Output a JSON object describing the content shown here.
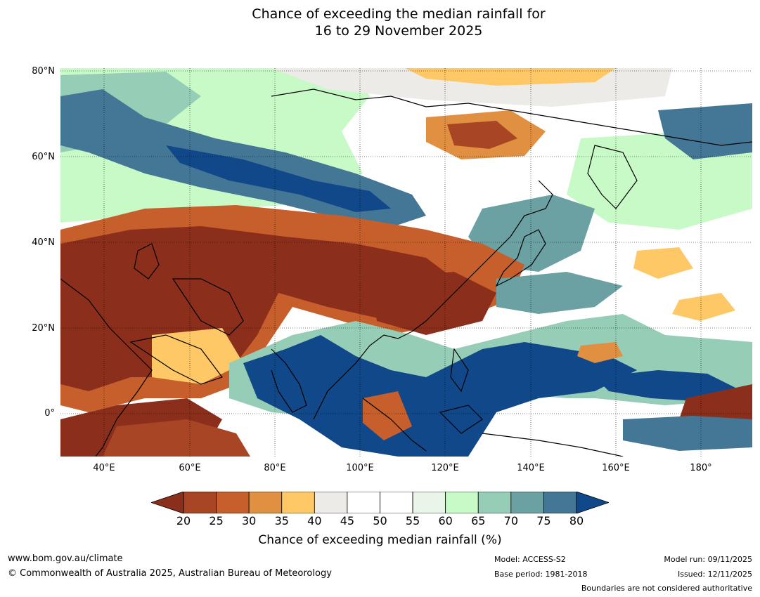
{
  "title_line1": "Chance of exceeding the median rainfall for",
  "title_line2": "16 to 29 November 2025",
  "lat_labels": [
    "80°N",
    "60°N",
    "40°N",
    "20°N",
    "0°"
  ],
  "lon_labels": [
    "40°E",
    "60°E",
    "80°E",
    "100°E",
    "120°E",
    "140°E",
    "160°E",
    "180°"
  ],
  "map": {
    "lat_range": [
      -10,
      80
    ],
    "lon_range": [
      30,
      192
    ],
    "grid": true
  },
  "colorbar": {
    "ticks": [
      "20",
      "25",
      "30",
      "35",
      "40",
      "45",
      "50",
      "55",
      "60",
      "65",
      "70",
      "75",
      "80"
    ],
    "colors": [
      "#8b2f1c",
      "#a84524",
      "#c65f2c",
      "#e09040",
      "#fdc865",
      "#edebe8",
      "#ffffff",
      "#ffffff",
      "#e9f5e8",
      "#c8fac8",
      "#96cdb6",
      "#6ba1a3",
      "#447796",
      "#11488a"
    ],
    "label": "Chance of exceeding median rainfall (%)"
  },
  "footer": {
    "website": "www.bom.gov.au/climate",
    "copyright": "© Commonwealth of Australia 2025, Australian Bureau of Meteorology",
    "model": "Model: ACCESS-S2",
    "base_period": "Base period: 1981-2018",
    "model_run": "Model run: 09/11/2025",
    "issued": "Issued: 12/11/2025",
    "disclaimer": "Boundaries are not considered authoritative"
  }
}
